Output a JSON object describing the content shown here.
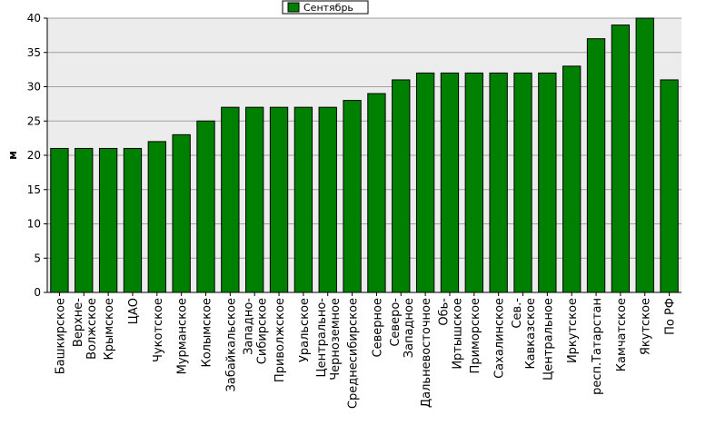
{
  "chart_data": {
    "type": "bar",
    "ylabel": "м",
    "ylim": [
      0,
      40
    ],
    "yticks": [
      0,
      5,
      10,
      15,
      20,
      25,
      30,
      35,
      40
    ],
    "grid": true,
    "legend_position": "top-center",
    "categories": [
      "Башкирское",
      "Верхне-Волжское",
      "Крымское",
      "ЦАО",
      "Чукотское",
      "Мурманское",
      "Колымское",
      "Забайкальское",
      "Западно-Сибирское",
      "Приволжское",
      "Уральское",
      "Центрально-Черноземное",
      "Среднесибирское",
      "Северное",
      "Северо-Западное",
      "Дальневосточное",
      "Обь-Иртышское",
      "Приморское",
      "Сахалинское",
      "Сев.-Кавказское",
      "Центральное",
      "Иркутское",
      "респ.Татарстан",
      "Камчатское",
      "Якутское",
      "По РФ"
    ],
    "category_lines": [
      [
        "Башкирское"
      ],
      [
        "Верхне-",
        "Волжское"
      ],
      [
        "Крымское"
      ],
      [
        "ЦАО"
      ],
      [
        "Чукотское"
      ],
      [
        "Мурманское"
      ],
      [
        "Колымское"
      ],
      [
        "Забайкальское"
      ],
      [
        "Западно-",
        "Сибирское"
      ],
      [
        "Приволжское"
      ],
      [
        "Уральское"
      ],
      [
        "Центрально-",
        "Черноземное"
      ],
      [
        "Среднесибирское"
      ],
      [
        "Северное"
      ],
      [
        "Северо-",
        "Западное"
      ],
      [
        "Дальневосточное"
      ],
      [
        "Обь-",
        "Иртышское"
      ],
      [
        "Приморское"
      ],
      [
        "Сахалинское"
      ],
      [
        "Сев.-",
        "Кавказское"
      ],
      [
        "Центральное"
      ],
      [
        "Иркутское"
      ],
      [
        "респ.Татарстан"
      ],
      [
        "Камчатское"
      ],
      [
        "Якутское"
      ],
      [
        "По РФ"
      ]
    ],
    "series": [
      {
        "name": "Сентябрь",
        "color": "#008000",
        "values": [
          21,
          21,
          21,
          21,
          22,
          23,
          25,
          27,
          27,
          27,
          27,
          27,
          28,
          29,
          31,
          32,
          32,
          32,
          32,
          32,
          32,
          33,
          37,
          39,
          40,
          31
        ]
      }
    ],
    "colors": {
      "plot_background": "#ececec",
      "gridline": "#a0a0a0",
      "bar_stroke": "#000000"
    }
  }
}
